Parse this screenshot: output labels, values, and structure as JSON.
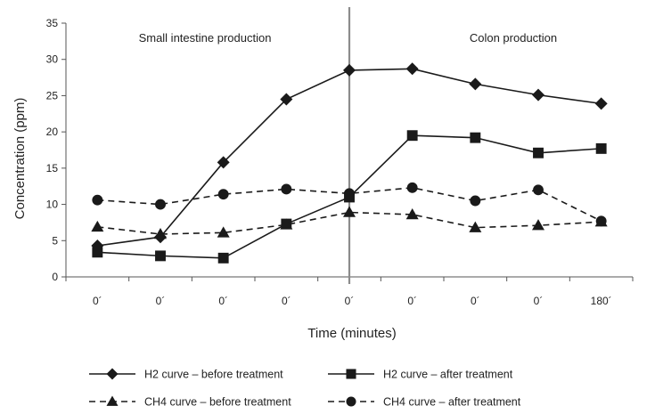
{
  "chart_data": {
    "type": "line",
    "title": "",
    "xlabel": "Time (minutes)",
    "ylabel": "Concentration (ppm)",
    "categories": [
      "0´",
      "0´",
      "0´",
      "0´",
      "0´",
      "0´",
      "0´",
      "0´",
      "180´"
    ],
    "ylim": [
      0,
      35
    ],
    "yticks": [
      "0",
      "5",
      "10",
      "15",
      "20",
      "25",
      "30",
      "35"
    ],
    "grid": false,
    "legend_position": "bottom",
    "annotations": {
      "left": "Small intestine production",
      "right": "Colon production"
    },
    "divider_after_category": 4,
    "series": [
      {
        "name": "H2 curve – before treatment",
        "marker": "diamond",
        "dash": "solid",
        "values": [
          4.3,
          5.5,
          15.8,
          24.5,
          28.5,
          28.7,
          26.6,
          25.1,
          23.9
        ]
      },
      {
        "name": "H2 curve – after treatment",
        "marker": "square",
        "dash": "solid",
        "values": [
          3.4,
          2.9,
          2.6,
          7.3,
          11.0,
          19.5,
          19.2,
          17.1,
          17.7
        ]
      },
      {
        "name": "CH4 curve – before treatment",
        "marker": "triangle",
        "dash": "dashed",
        "values": [
          6.9,
          5.9,
          6.1,
          7.2,
          8.9,
          8.6,
          6.8,
          7.1,
          7.6
        ]
      },
      {
        "name": "CH4 curve – after treatment",
        "marker": "circle",
        "dash": "dashed",
        "values": [
          10.6,
          10.0,
          11.4,
          12.1,
          11.5,
          12.3,
          10.5,
          12.0,
          7.7
        ]
      }
    ]
  }
}
